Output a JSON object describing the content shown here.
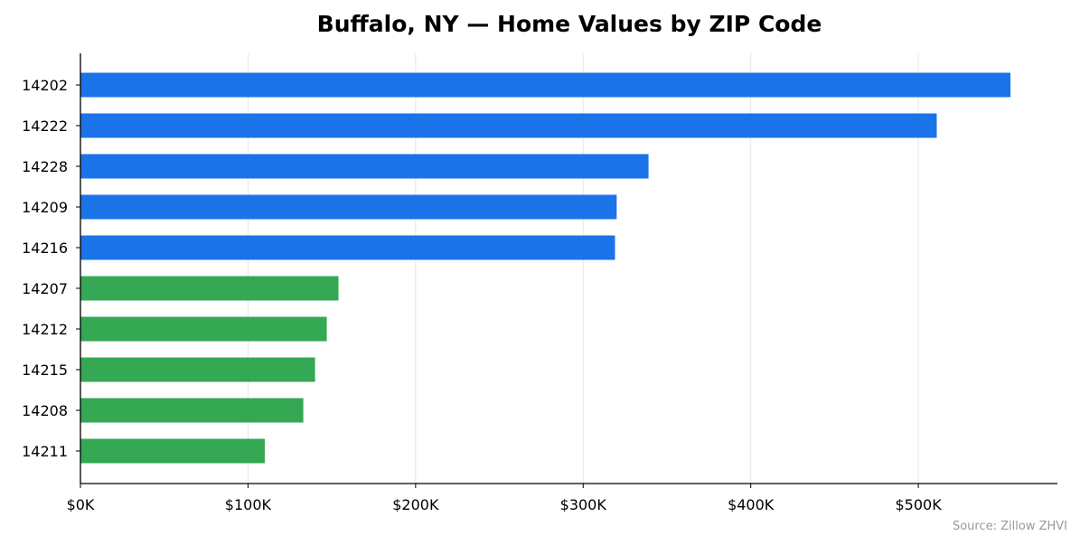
{
  "chart_data": {
    "type": "bar",
    "orientation": "horizontal",
    "title": "Buffalo, NY — Home Values by ZIP Code",
    "xlabel": "",
    "ylabel": "",
    "categories": [
      "14202",
      "14222",
      "14228",
      "14209",
      "14216",
      "14207",
      "14212",
      "14215",
      "14208",
      "14211"
    ],
    "values": [
      555000,
      511000,
      339000,
      320000,
      319000,
      154000,
      147000,
      140000,
      133000,
      110000
    ],
    "bar_colors": [
      "#1a73e8",
      "#1a73e8",
      "#1a73e8",
      "#1a73e8",
      "#1a73e8",
      "#34a853",
      "#34a853",
      "#34a853",
      "#34a853",
      "#34a853"
    ],
    "xlim": [
      0,
      583000
    ],
    "x_ticks": [
      0,
      100000,
      200000,
      300000,
      400000,
      500000
    ],
    "x_tick_labels": [
      "$0K",
      "$100K",
      "$200K",
      "$300K",
      "$400K",
      "$500K"
    ],
    "grid": "vertical",
    "legend": "none",
    "source_note": "Source: Zillow ZHVI"
  }
}
